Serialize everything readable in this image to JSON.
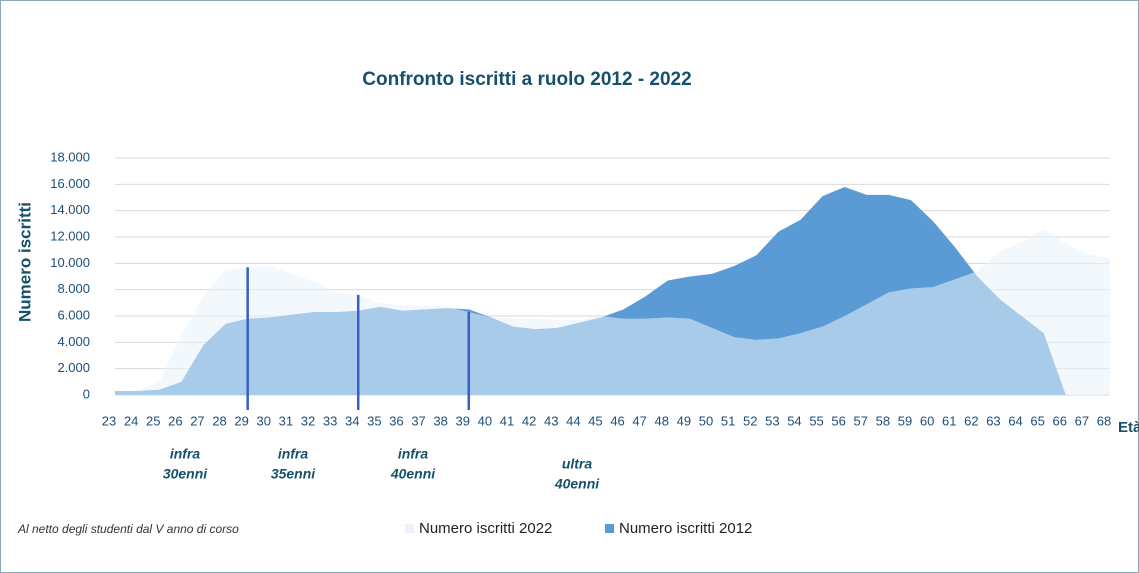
{
  "chart_data": {
    "type": "area",
    "title": "Confronto iscritti a ruolo 2012 - 2022",
    "y_label": "Numero iscritti",
    "x_label": "Età",
    "note": "Al netto degli studenti dal V anno di corso",
    "categories": [
      "23",
      "24",
      "25",
      "26",
      "27",
      "28",
      "29",
      "30",
      "31",
      "32",
      "33",
      "34",
      "35",
      "36",
      "37",
      "38",
      "39",
      "40",
      "41",
      "42",
      "43",
      "44",
      "45",
      "46",
      "47",
      "48",
      "49",
      "50",
      "51",
      "52",
      "53",
      "54",
      "55",
      "56",
      "57",
      "58",
      "59",
      "60",
      "61",
      "62",
      "63",
      "64",
      "65",
      "66",
      "67",
      "68"
    ],
    "series": [
      {
        "name": "Numero iscritti 2022",
        "color": "#eaf2fb",
        "values": [
          300,
          300,
          1000,
          4500,
          7500,
          9500,
          9700,
          9800,
          9200,
          8600,
          7800,
          7600,
          7000,
          6800,
          6800,
          6700,
          6300,
          5900,
          5800,
          5800,
          5700,
          5700,
          6000,
          5800,
          5800,
          5900,
          5800,
          5100,
          4400,
          4200,
          4300,
          4700,
          5200,
          6000,
          6900,
          7800,
          8100,
          8200,
          8800,
          9400,
          10900,
          11600,
          12600,
          11500,
          10700,
          10400
        ]
      },
      {
        "name": "Numero iscritti 2012",
        "color": "#5b9bd5",
        "values": [
          300,
          300,
          400,
          1000,
          3800,
          5400,
          5800,
          5900,
          6100,
          6300,
          6300,
          6400,
          6700,
          6400,
          6500,
          6600,
          6500,
          5900,
          5200,
          5000,
          5100,
          5500,
          5900,
          6500,
          7500,
          8700,
          9000,
          9200,
          9800,
          10600,
          12400,
          13300,
          15100,
          15800,
          15200,
          15200,
          14800,
          13200,
          11200,
          9000,
          7300,
          6000,
          4700,
          0,
          0,
          0
        ]
      }
    ],
    "ylim": [
      0,
      18000
    ],
    "yticks": [
      {
        "value": 0,
        "label": "0"
      },
      {
        "value": 2000,
        "label": "2.000"
      },
      {
        "value": 4000,
        "label": "4.000"
      },
      {
        "value": 6000,
        "label": "6.000"
      },
      {
        "value": 8000,
        "label": "8.000"
      },
      {
        "value": 10000,
        "label": "10.000"
      },
      {
        "value": 12000,
        "label": "12.000"
      },
      {
        "value": 14000,
        "label": "14.000"
      },
      {
        "value": 16000,
        "label": "16.000"
      },
      {
        "value": 18000,
        "label": "18.000"
      }
    ],
    "grid": true,
    "dividers": [
      "29",
      "34",
      "39"
    ],
    "annotations": [
      [
        "infra",
        "30enni"
      ],
      [
        "infra",
        "35enni"
      ],
      [
        "infra",
        "40enni"
      ],
      [
        "ultra",
        "40enni"
      ]
    ]
  }
}
